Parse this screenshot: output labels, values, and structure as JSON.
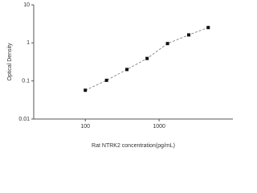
{
  "chart_data": {
    "type": "scatter",
    "x_label": "Rat NTRK2 concentration(pg/mL)",
    "y_label": "Optical Density",
    "x": [
      100,
      194,
      366,
      687,
      1300,
      2520,
      4630
    ],
    "values": [
      0.057,
      0.104,
      0.2,
      0.39,
      0.96,
      1.62,
      2.53
    ],
    "color": "#111111",
    "fit_line": true,
    "xlim": [
      20,
      10000
    ],
    "ylim": [
      0.01,
      10
    ],
    "xticks": [
      100,
      1000
    ],
    "yticks": [
      0.01,
      0.1,
      1,
      10
    ],
    "xscale": "log",
    "yscale": "log"
  }
}
